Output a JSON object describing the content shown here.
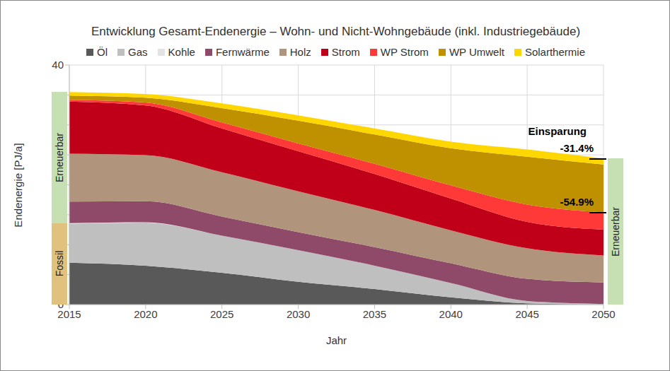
{
  "chart_data": {
    "type": "area",
    "stacked": true,
    "grid": true,
    "title": "Entwicklung Gesamt-Endenergie – Wohn- und Nicht-Wohngebäude (inkl. Industriegebäude)",
    "x_label": "Jahr",
    "y_label": "Endenergie [PJ/a]",
    "x": [
      2015,
      2020,
      2025,
      2030,
      2035,
      2040,
      2045,
      2050
    ],
    "xlim": [
      2015,
      2050
    ],
    "xticks": [
      2015,
      2020,
      2025,
      2030,
      2035,
      2040,
      2045,
      2050
    ],
    "ylim": [
      0,
      40
    ],
    "yticks": [
      0,
      5,
      10,
      15,
      20,
      25,
      30,
      35,
      40
    ],
    "legend": "top",
    "series": [
      {
        "name": "Öl",
        "color": "#595959",
        "values": [
          7.0,
          6.5,
          5.3,
          3.8,
          2.6,
          1.2,
          0.2,
          0.0
        ]
      },
      {
        "name": "Gas",
        "color": "#bfbfbf",
        "values": [
          6.5,
          7.2,
          6.2,
          5.3,
          3.9,
          2.4,
          0.4,
          0.1
        ]
      },
      {
        "name": "Kohle",
        "color": "#e3e3e3",
        "values": [
          0.1,
          0.05,
          0.0,
          0.0,
          0.0,
          0.0,
          0.0,
          0.0
        ]
      },
      {
        "name": "Fernwärme",
        "color": "#8f4a6a",
        "values": [
          3.6,
          3.5,
          3.2,
          3.0,
          3.1,
          3.3,
          3.7,
          3.6
        ]
      },
      {
        "name": "Holz",
        "color": "#b0957c",
        "values": [
          8.0,
          7.7,
          7.4,
          6.8,
          6.2,
          5.5,
          5.1,
          4.5
        ]
      },
      {
        "name": "Strom",
        "color": "#c00018",
        "values": [
          8.7,
          8.3,
          7.3,
          6.7,
          6.0,
          5.3,
          4.4,
          4.3
        ]
      },
      {
        "name": "WP Strom",
        "color": "#ff3838",
        "values": [
          0.3,
          0.5,
          1.0,
          1.3,
          1.7,
          2.2,
          2.9,
          2.9
        ]
      },
      {
        "name": "WP Umwelt",
        "color": "#bf9000",
        "values": [
          0.7,
          0.8,
          2.4,
          3.8,
          4.9,
          6.2,
          8.0,
          8.0
        ]
      },
      {
        "name": "Solarthermie",
        "color": "#ffd700",
        "values": [
          0.6,
          0.6,
          0.8,
          0.9,
          1.0,
          1.1,
          1.2,
          1.0
        ]
      }
    ],
    "annotations": [
      {
        "text": "Einsparung"
      },
      {
        "text": "-31.4%"
      },
      {
        "text": "-54.9%"
      }
    ],
    "side_labels": {
      "left": [
        "Fossil",
        "Erneuerbar"
      ],
      "right": "Erneuerbar"
    }
  }
}
